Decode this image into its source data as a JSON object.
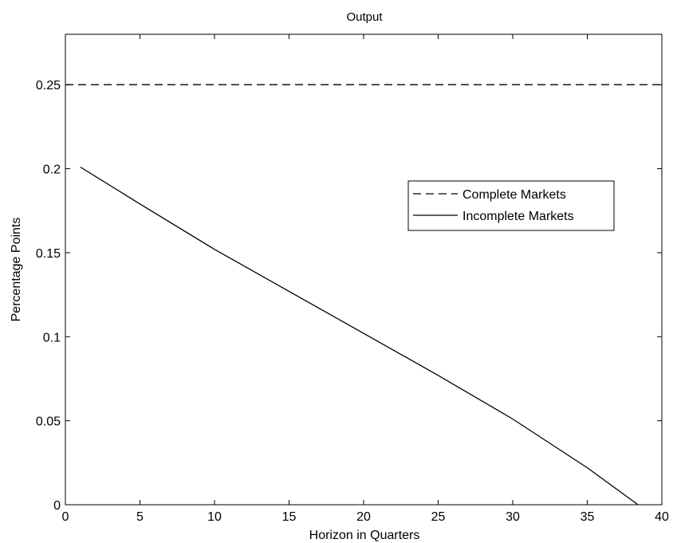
{
  "chart_data": {
    "type": "line",
    "title": "Output",
    "xlabel": "Horizon in Quarters",
    "ylabel": "Percentage Points",
    "xlim": [
      0,
      40
    ],
    "ylim": [
      0,
      0.28
    ],
    "xticks": [
      0,
      5,
      10,
      15,
      20,
      25,
      30,
      35,
      40
    ],
    "xtick_labels": [
      "0",
      "5",
      "10",
      "15",
      "20",
      "25",
      "30",
      "35",
      "40"
    ],
    "yticks": [
      0,
      0.05,
      0.1,
      0.15,
      0.2,
      0.25
    ],
    "ytick_labels": [
      "0",
      "0.05",
      "0.1",
      "0.15",
      "0.2",
      "0.25"
    ],
    "grid": false,
    "legend_position": "right",
    "series": [
      {
        "name": "Complete Markets",
        "style": "dashed",
        "color": "#000000",
        "x": [
          0,
          40
        ],
        "y": [
          0.25,
          0.25
        ]
      },
      {
        "name": "Incomplete Markets",
        "style": "solid",
        "color": "#000000",
        "x": [
          1,
          5,
          10,
          15,
          20,
          25,
          30,
          35,
          38.4
        ],
        "y": [
          0.201,
          0.179,
          0.152,
          0.127,
          0.102,
          0.077,
          0.051,
          0.022,
          0.0
        ]
      }
    ]
  }
}
